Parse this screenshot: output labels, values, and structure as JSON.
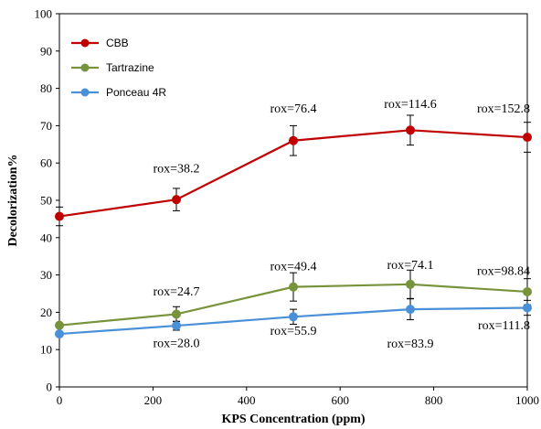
{
  "chart_data": {
    "type": "line",
    "title": "",
    "xlabel": "KPS Concentration (ppm)",
    "ylabel": "Decolorization%",
    "xlim": [
      0,
      1000
    ],
    "ylim": [
      0,
      100
    ],
    "x_ticks": [
      0,
      200,
      400,
      600,
      800,
      1000
    ],
    "y_ticks": [
      0,
      10,
      20,
      30,
      40,
      50,
      60,
      70,
      80,
      90,
      100
    ],
    "grid": false,
    "legend_position": "top-left",
    "x": [
      0,
      250,
      500,
      750,
      1000
    ],
    "series": [
      {
        "name": "CBB",
        "color": "#c00000",
        "values": [
          45.7,
          50.2,
          66.0,
          68.8,
          66.9
        ],
        "errors": [
          2.5,
          3.0,
          4.0,
          4.0,
          4.0
        ]
      },
      {
        "name": "Tartrazine",
        "color": "#77933c",
        "values": [
          16.5,
          19.5,
          26.8,
          27.5,
          25.5
        ],
        "errors": [
          0,
          2.0,
          3.8,
          3.8,
          3.5
        ]
      },
      {
        "name": "Ponceau 4R",
        "color": "#4a90d9",
        "values": [
          14.2,
          16.4,
          18.8,
          20.8,
          21.2
        ],
        "errors": [
          0,
          1.2,
          2.0,
          2.8,
          2.0
        ]
      }
    ],
    "annotations": [
      {
        "text": "rox=38.2",
        "x": 250,
        "y": 57.5
      },
      {
        "text": "rox=76.4",
        "x": 500,
        "y": 73.5
      },
      {
        "text": "rox=114.6",
        "x": 750,
        "y": 74.8
      },
      {
        "text": "rox=152.8",
        "x": 1000,
        "y": 73.5
      },
      {
        "text": "rox=24.7",
        "x": 250,
        "y": 24.5
      },
      {
        "text": "rox=49.4",
        "x": 500,
        "y": 31.3
      },
      {
        "text": "rox=74.1",
        "x": 750,
        "y": 31.6
      },
      {
        "text": "rox=98.84",
        "x": 1000,
        "y": 30.0
      },
      {
        "text": "rox=28.0",
        "x": 250,
        "y": 10.7
      },
      {
        "text": "rox=55.9",
        "x": 500,
        "y": 14.0
      },
      {
        "text": "rox=83.9",
        "x": 750,
        "y": 10.5
      },
      {
        "text": "rox=111.8",
        "x": 1000,
        "y": 15.5
      }
    ]
  }
}
